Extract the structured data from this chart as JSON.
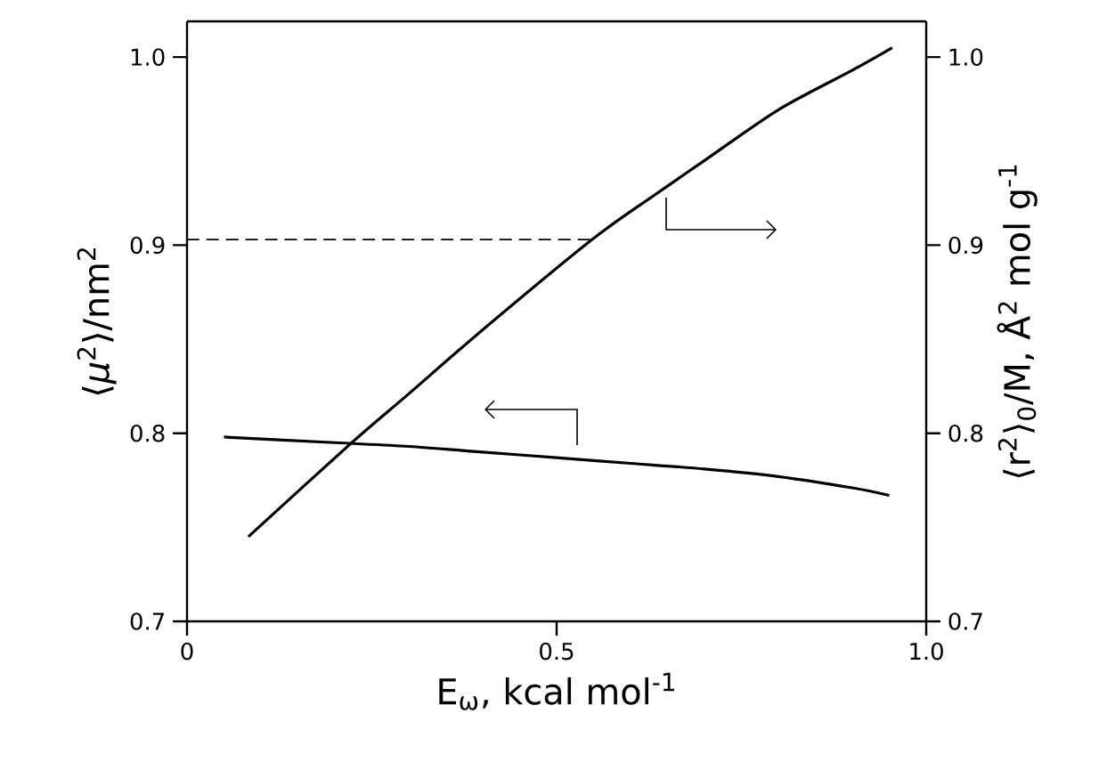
{
  "chart_data": {
    "type": "line",
    "xlabel": "E$_{ω}$, kcal mol$^{-1}$",
    "ylabel": "⟨*μ*$^{2}$⟩/nm$^{2}$",
    "y2label": "⟨r$^{2}$⟩$_{0}$/M, Å$^{2}$ mol g$^{-1}$",
    "xlim": [
      0,
      1
    ],
    "xticks": [
      0,
      0.5,
      {
        "value": 1,
        "label": "1.0"
      }
    ],
    "ylim": [
      0.7,
      1.019
    ],
    "yticks": [
      0.7,
      0.8,
      0.9,
      {
        "value": 1,
        "label": "1.0"
      }
    ],
    "y2lim": [
      0.7,
      1.019
    ],
    "y2ticks": [
      0.7,
      0.8,
      0.9,
      {
        "value": 1,
        "label": "1.0"
      }
    ],
    "marker": "none",
    "series": [
      {
        "color": "#000000",
        "line_style": "solid",
        "x": [
          0.05,
          0.2,
          0.3,
          0.4,
          0.5,
          0.6,
          0.7,
          0.8,
          0.9,
          0.95
        ],
        "values": [
          0.798,
          0.795,
          0.793,
          0.79,
          0.787,
          0.784,
          0.781,
          0.777,
          0.771,
          0.767
        ]
      },
      {
        "color": "#000000",
        "line_style": "solid",
        "axis": "y2",
        "x": [
          0.083,
          0.22,
          0.3,
          0.4,
          0.548,
          0.63,
          0.7,
          0.8,
          0.9,
          0.954
        ],
        "values": [
          0.745,
          0.794,
          0.821,
          0.855,
          0.903,
          0.926,
          0.945,
          0.972,
          0.993,
          1.005
        ]
      },
      {
        "color": "#000000",
        "line_style": "dashed",
        "x": [
          0,
          0.548
        ],
        "values": [
          0.903,
          0.903
        ]
      }
    ]
  }
}
